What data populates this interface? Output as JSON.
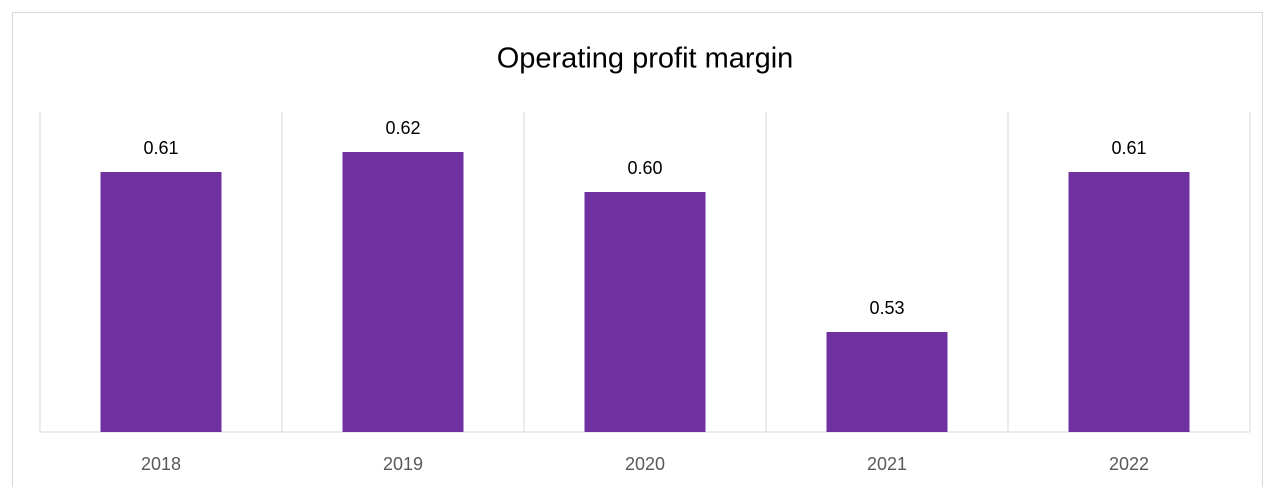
{
  "chart_data": {
    "type": "bar",
    "title": "Operating profit margin",
    "categories": [
      "2018",
      "2019",
      "2020",
      "2021",
      "2022"
    ],
    "values": [
      0.61,
      0.62,
      0.6,
      0.53,
      0.61
    ],
    "value_labels": [
      "0.61",
      "0.62",
      "0.60",
      "0.53",
      "0.61"
    ],
    "color": "#7030a0",
    "ylim": [
      0.48,
      0.64
    ]
  }
}
